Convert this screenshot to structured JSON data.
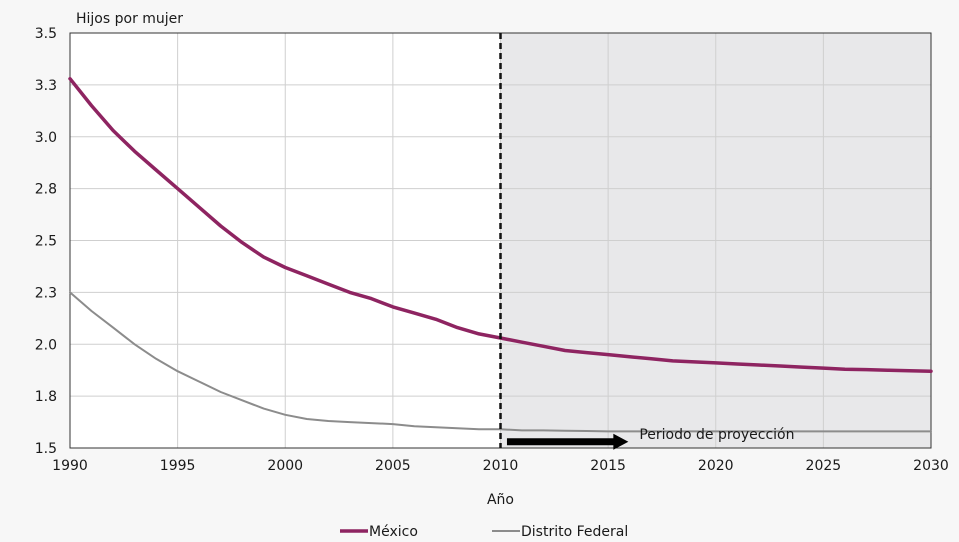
{
  "chart_data": {
    "type": "line",
    "ylabel": "Hijos por mujer",
    "xlabel": "Año",
    "xlim": [
      1990,
      2030
    ],
    "ylim": [
      1.5,
      3.5
    ],
    "x_ticks": [
      1990,
      1995,
      2000,
      2005,
      2010,
      2015,
      2020,
      2025,
      2030
    ],
    "y_ticks": [
      1.5,
      1.75,
      2.0,
      2.25,
      2.5,
      2.75,
      3.0,
      3.25,
      3.5
    ],
    "y_tick_labels": [
      "1.5",
      "1.8",
      "2.0",
      "2.3",
      "2.5",
      "2.8",
      "3.0",
      "3.3",
      "3.5"
    ],
    "grid": true,
    "legend_placement": "bottom",
    "projection": {
      "start": 2010,
      "end": 2030,
      "label": "Periodo de proyección",
      "shade_color": "#e8e8ea"
    },
    "series": [
      {
        "name": "México",
        "color": "#8e2461",
        "x": [
          1990,
          1991,
          1992,
          1993,
          1994,
          1995,
          1996,
          1997,
          1998,
          1999,
          2000,
          2001,
          2002,
          2003,
          2004,
          2005,
          2006,
          2007,
          2008,
          2009,
          2010,
          2011,
          2012,
          2013,
          2014,
          2015,
          2016,
          2017,
          2018,
          2019,
          2020,
          2021,
          2022,
          2023,
          2024,
          2025,
          2026,
          2027,
          2028,
          2029,
          2030
        ],
        "values": [
          3.28,
          3.15,
          3.03,
          2.93,
          2.84,
          2.75,
          2.66,
          2.57,
          2.49,
          2.42,
          2.37,
          2.33,
          2.29,
          2.25,
          2.22,
          2.18,
          2.15,
          2.12,
          2.08,
          2.05,
          2.03,
          2.01,
          1.99,
          1.97,
          1.96,
          1.95,
          1.94,
          1.93,
          1.92,
          1.915,
          1.91,
          1.905,
          1.9,
          1.895,
          1.89,
          1.885,
          1.88,
          1.878,
          1.875,
          1.872,
          1.87
        ]
      },
      {
        "name": "Distrito Federal",
        "color": "#8c8c8c",
        "x": [
          1990,
          1991,
          1992,
          1993,
          1994,
          1995,
          1996,
          1997,
          1998,
          1999,
          2000,
          2001,
          2002,
          2003,
          2004,
          2005,
          2006,
          2007,
          2008,
          2009,
          2010,
          2011,
          2012,
          2013,
          2014,
          2015,
          2016,
          2017,
          2018,
          2019,
          2020,
          2021,
          2022,
          2023,
          2024,
          2025,
          2026,
          2027,
          2028,
          2029,
          2030
        ],
        "values": [
          2.25,
          2.16,
          2.08,
          2.0,
          1.93,
          1.87,
          1.82,
          1.77,
          1.73,
          1.69,
          1.66,
          1.64,
          1.63,
          1.625,
          1.62,
          1.615,
          1.605,
          1.6,
          1.595,
          1.59,
          1.59,
          1.585,
          1.585,
          1.583,
          1.582,
          1.58,
          1.58,
          1.58,
          1.58,
          1.58,
          1.58,
          1.58,
          1.58,
          1.58,
          1.58,
          1.58,
          1.58,
          1.58,
          1.58,
          1.58,
          1.58
        ]
      }
    ]
  }
}
